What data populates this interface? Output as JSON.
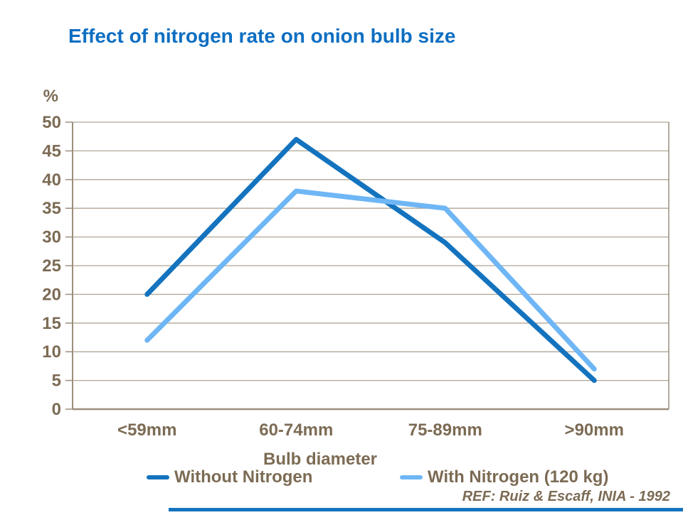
{
  "slide": {
    "title": "Effect of nitrogen rate on onion bulb size",
    "reference": "REF: Ruiz & Escaff, INIA - 1992"
  },
  "chart_data": {
    "type": "line",
    "title": "Effect of nitrogen rate on onion bulb size",
    "categories": [
      "<59mm",
      "60-74mm",
      "75-89mm",
      ">90mm"
    ],
    "series": [
      {
        "name": "Without Nitrogen",
        "color": "#1473BE",
        "values": [
          20,
          47,
          29,
          5
        ]
      },
      {
        "name": "With Nitrogen (120 kg)",
        "color": "#6EB6F5",
        "values": [
          12,
          38,
          35,
          7
        ]
      }
    ],
    "xlabel": "Bulb diameter",
    "ylabel": "%",
    "ylim": [
      0,
      50
    ],
    "ytick_step": 5,
    "yticks": [
      0,
      5,
      10,
      15,
      20,
      25,
      30,
      35,
      40,
      45,
      50
    ],
    "grid": true,
    "legend_position": "bottom"
  },
  "colors": {
    "title": "#0D6EC2",
    "text": "#7C6B54",
    "grid": "#B1A695",
    "axis": "#9C8E7B",
    "accent_bar": "#1473BE",
    "background": "#FFFFFF"
  }
}
